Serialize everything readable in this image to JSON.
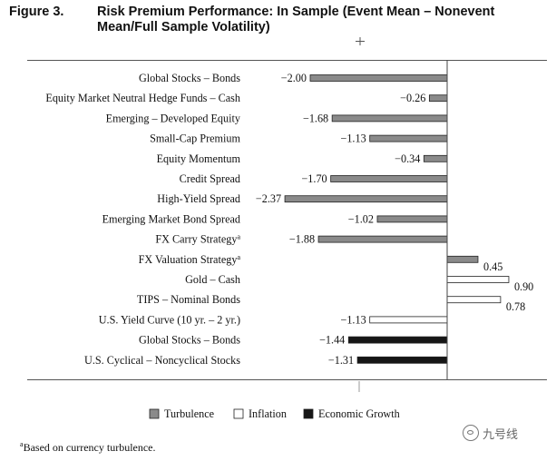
{
  "figure": {
    "number": "Figure 3.",
    "title_line1": "Risk Premium Performance: In Sample (Event Mean – Nonevent",
    "title_line2": "Mean/Full Sample Volatility)"
  },
  "footnote": {
    "marker": "a",
    "text": "Based on currency turbulence."
  },
  "watermark": {
    "text": "九号线",
    "icon": "wechat-icon"
  },
  "colors": {
    "turbulence": "#8a8a8a",
    "inflation": "#ffffff",
    "economic_growth": "#161616",
    "axis": "#444444"
  },
  "chart_data": {
    "type": "bar",
    "orientation": "horizontal",
    "title": "Risk Premium Performance: In Sample (Event Mean – Nonevent Mean/Full Sample Volatility)",
    "xlim": [
      -2.6,
      1.05
    ],
    "legend_position": "bottom",
    "legend": [
      {
        "name": "Turbulence",
        "color_key": "turbulence"
      },
      {
        "name": "Inflation",
        "color_key": "inflation"
      },
      {
        "name": "Economic Growth",
        "color_key": "economic_growth"
      }
    ],
    "bars": [
      {
        "label": "Global Stocks – Bonds",
        "sup": "",
        "value": -2.0,
        "value_label": "−2.00",
        "series": "turbulence"
      },
      {
        "label": "Equity Market Neutral Hedge Funds – Cash",
        "sup": "",
        "value": -0.26,
        "value_label": "−0.26",
        "series": "turbulence"
      },
      {
        "label": "Emerging – Developed Equity",
        "sup": "",
        "value": -1.68,
        "value_label": "−1.68",
        "series": "turbulence"
      },
      {
        "label": "Small-Cap Premium",
        "sup": "",
        "value": -1.13,
        "value_label": "−1.13",
        "series": "turbulence"
      },
      {
        "label": "Equity Momentum",
        "sup": "",
        "value": -0.34,
        "value_label": "−0.34",
        "series": "turbulence"
      },
      {
        "label": "Credit Spread",
        "sup": "",
        "value": -1.7,
        "value_label": "−1.70",
        "series": "turbulence"
      },
      {
        "label": "High-Yield Spread",
        "sup": "",
        "value": -2.37,
        "value_label": "−2.37",
        "series": "turbulence"
      },
      {
        "label": "Emerging Market Bond Spread",
        "sup": "",
        "value": -1.02,
        "value_label": "−1.02",
        "series": "turbulence"
      },
      {
        "label": "FX Carry Strategy",
        "sup": "a",
        "value": -1.88,
        "value_label": "−1.88",
        "series": "turbulence"
      },
      {
        "label": "FX Valuation Strategy",
        "sup": "a",
        "value": 0.45,
        "value_label": "0.45",
        "series": "turbulence"
      },
      {
        "label": "Gold – Cash",
        "sup": "",
        "value": 0.9,
        "value_label": "0.90",
        "series": "inflation"
      },
      {
        "label": "TIPS – Nominal Bonds",
        "sup": "",
        "value": 0.78,
        "value_label": "0.78",
        "series": "inflation"
      },
      {
        "label": "U.S. Yield Curve (10 yr. – 2 yr.)",
        "sup": "",
        "value": -1.13,
        "value_label": "−1.13",
        "series": "inflation"
      },
      {
        "label": "Global Stocks – Bonds",
        "sup": "",
        "value": -1.44,
        "value_label": "−1.44",
        "series": "economic_growth"
      },
      {
        "label": "U.S. Cyclical – Noncyclical Stocks",
        "sup": "",
        "value": -1.31,
        "value_label": "−1.31",
        "series": "economic_growth"
      }
    ]
  }
}
